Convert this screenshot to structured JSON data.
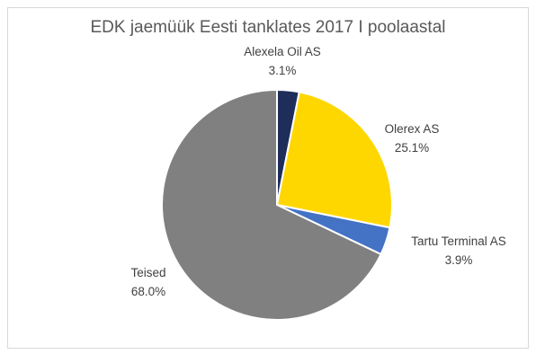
{
  "chart_data": {
    "type": "pie",
    "title": "EDK jaemüük Eesti tanklates 2017 I poolaastal",
    "categories": [
      "Alexela Oil AS",
      "Olerex AS",
      "Tartu Terminal AS",
      "Teised"
    ],
    "values": [
      3.1,
      25.1,
      3.9,
      68.0
    ],
    "value_labels": [
      "3.1%",
      "25.1%",
      "3.9%",
      "68.0%"
    ],
    "colors": [
      "#1f2d5a",
      "#ffd700",
      "#4472c4",
      "#808080"
    ],
    "start_angle_deg": 0,
    "direction": "clockwise",
    "legend": "none"
  }
}
